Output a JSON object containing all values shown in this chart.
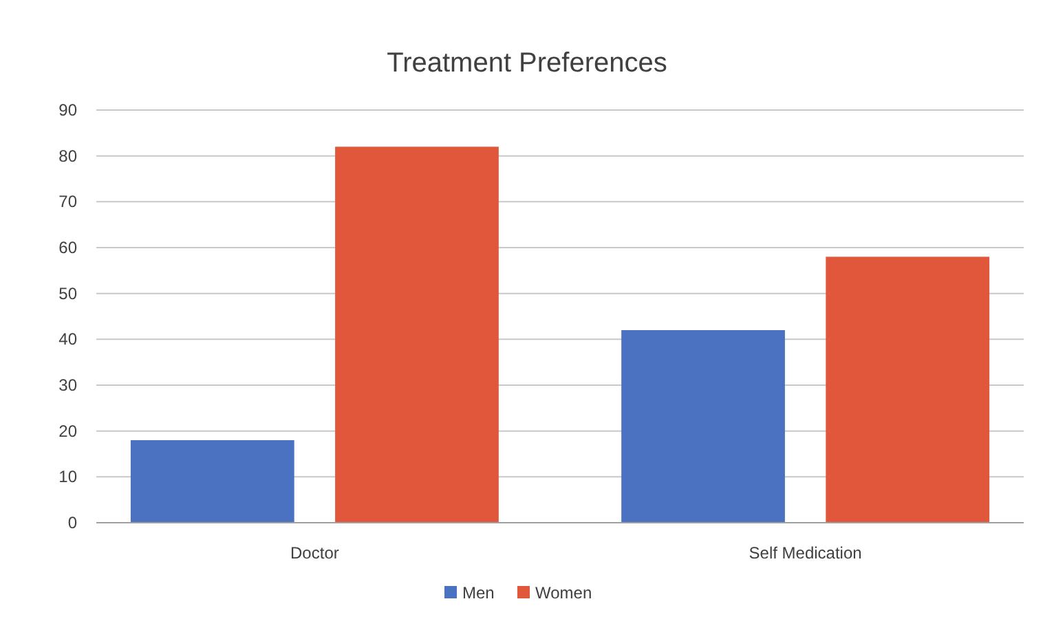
{
  "chart_data": {
    "type": "bar",
    "title": "Treatment Preferences",
    "categories": [
      "Doctor",
      "Self Medication"
    ],
    "series": [
      {
        "name": "Men",
        "color": "#4a72c0",
        "values": [
          18,
          42
        ]
      },
      {
        "name": "Women",
        "color": "#e0573b",
        "values": [
          82,
          58
        ]
      }
    ],
    "ylim": [
      0,
      90
    ],
    "yticks": [
      0,
      10,
      20,
      30,
      40,
      50,
      60,
      70,
      80,
      90
    ],
    "grid": "y",
    "legend": "bottom"
  }
}
